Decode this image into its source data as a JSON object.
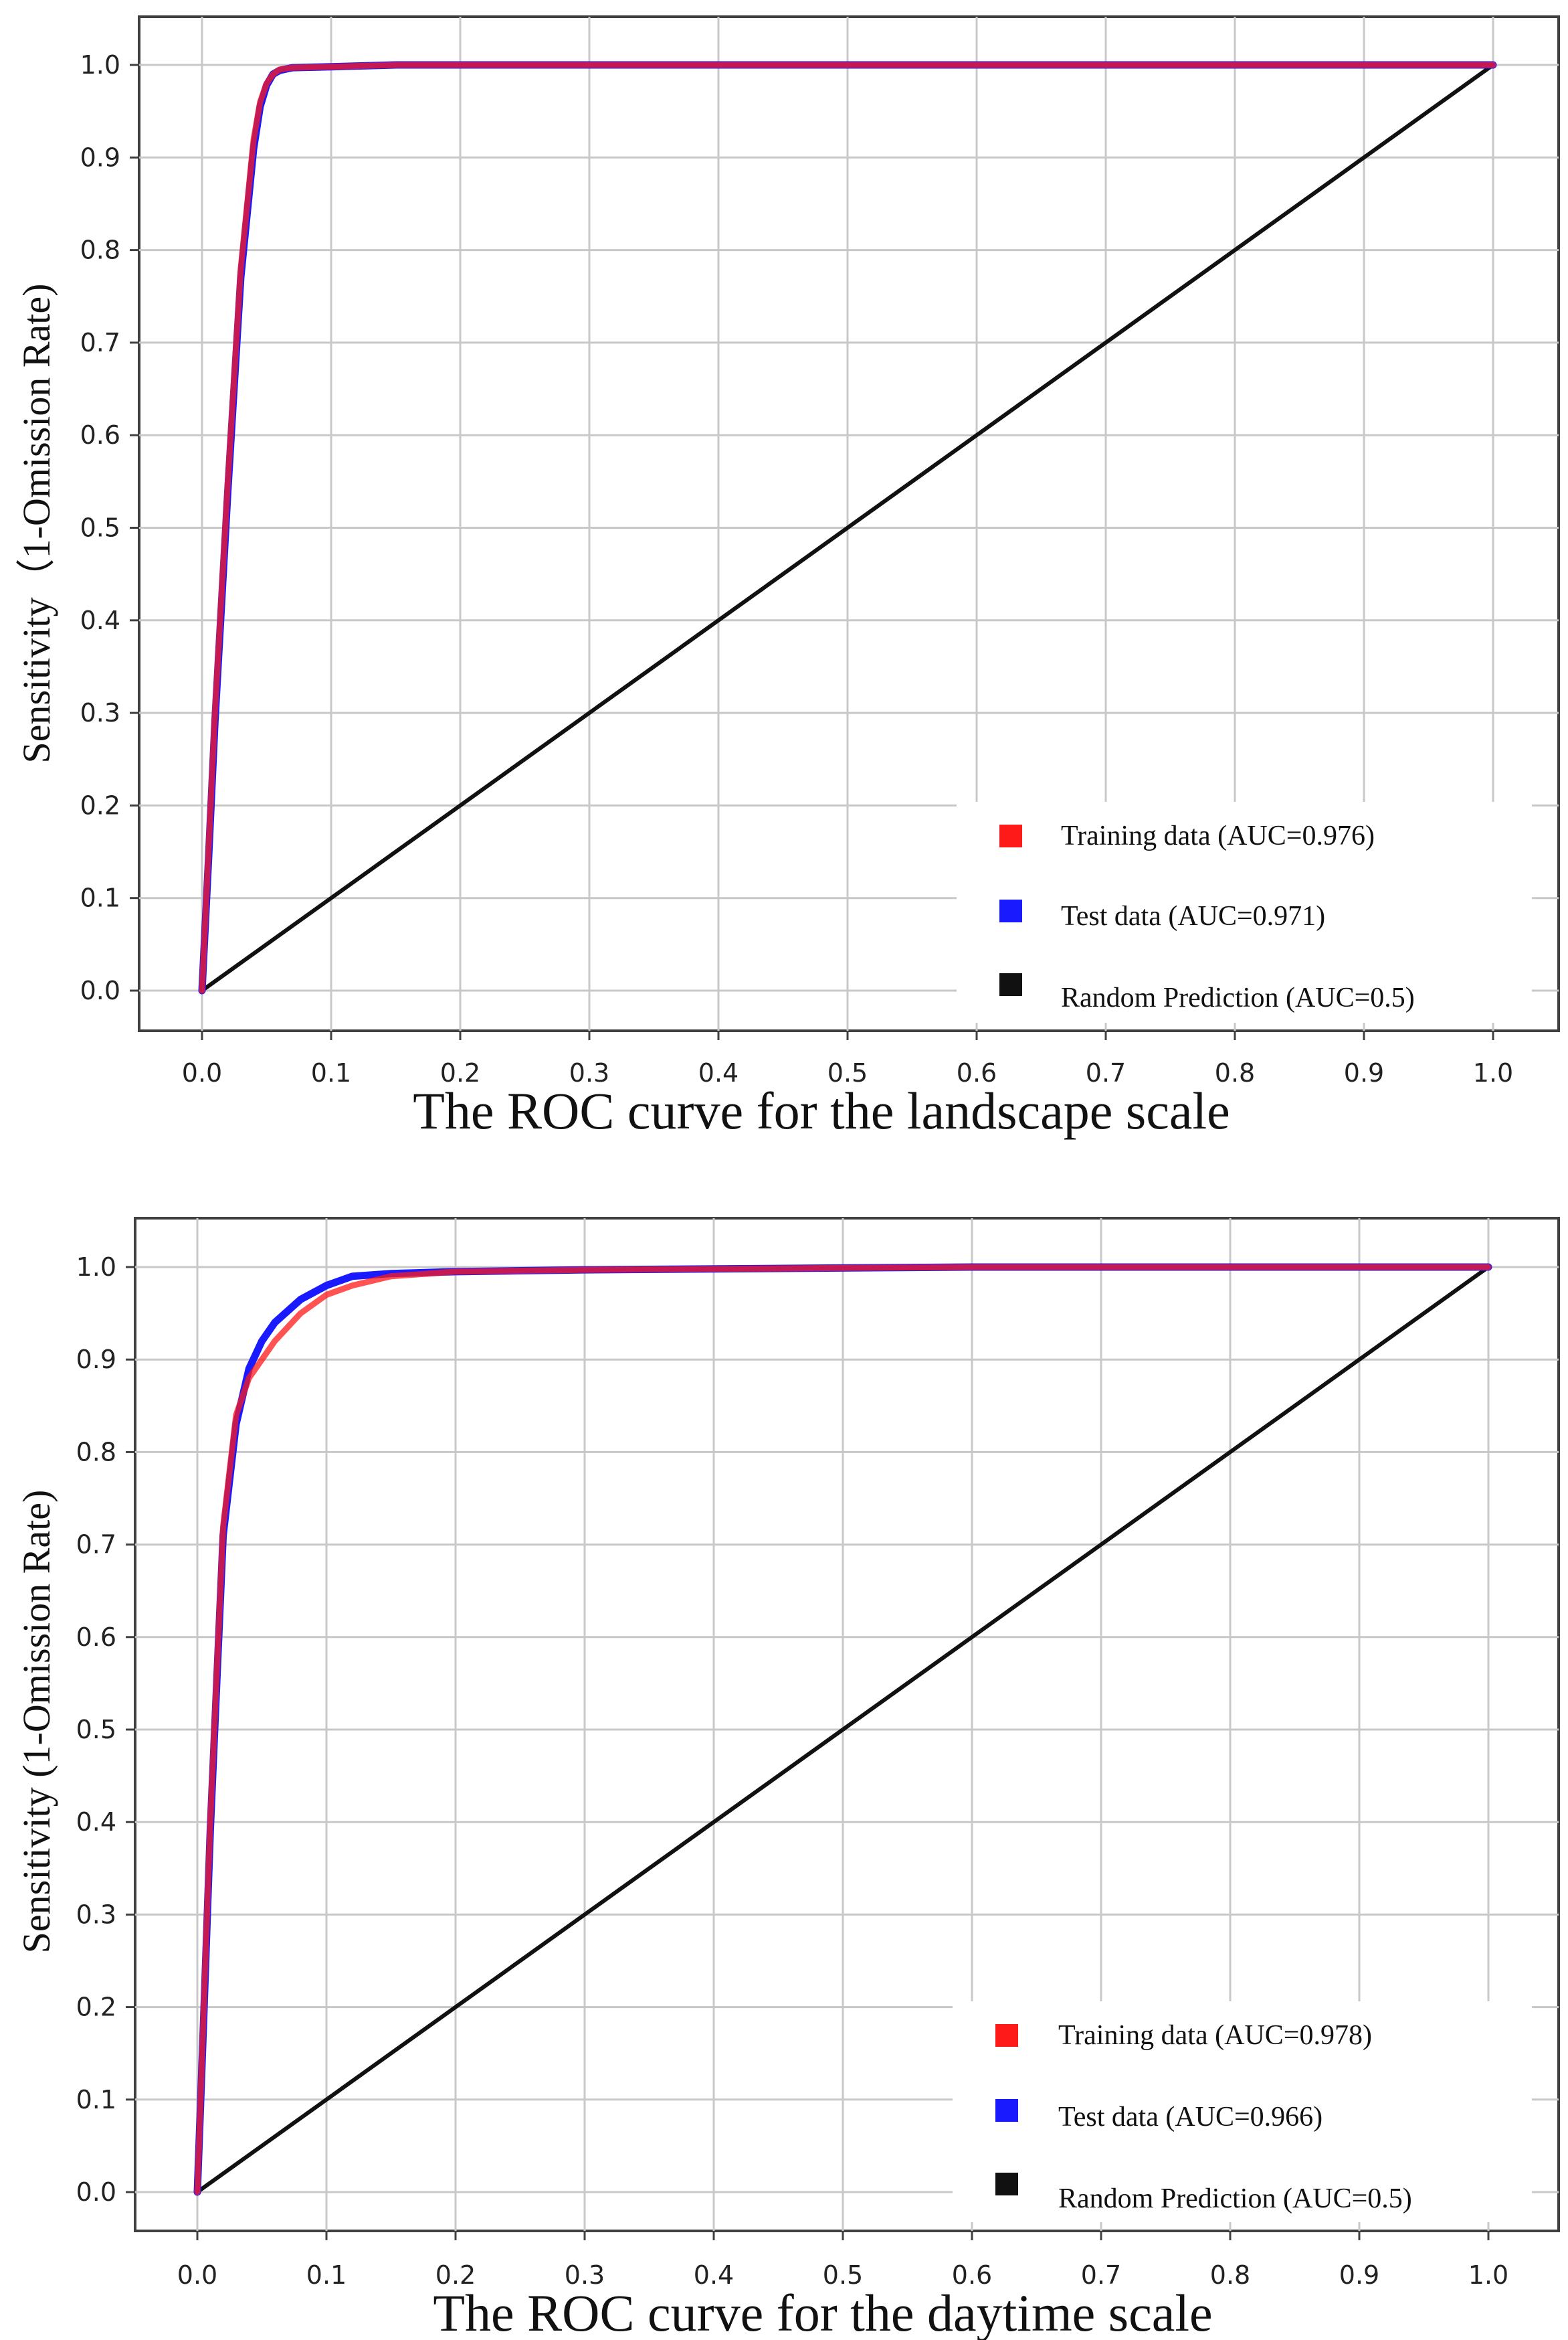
{
  "colors": {
    "training": "#ff1a1a",
    "test": "#1a1aff",
    "random": "#111111",
    "grid": "#c8c8c8",
    "frame": "#404040"
  },
  "chart_data": [
    {
      "type": "line",
      "title": "The ROC curve for the landscape scale",
      "ylabel": "Sensitivity（1-Omission Rate)",
      "xlabel": "",
      "xlim": [
        0,
        1
      ],
      "ylim": [
        0,
        1
      ],
      "xticks": [
        "0.0",
        "0.1",
        "0.2",
        "0.3",
        "0.4",
        "0.5",
        "0.6",
        "0.7",
        "0.8",
        "0.9",
        "1.0"
      ],
      "yticks": [
        "0.0",
        "0.1",
        "0.2",
        "0.3",
        "0.4",
        "0.5",
        "0.6",
        "0.7",
        "0.8",
        "0.9",
        "1.0"
      ],
      "grid": true,
      "legend_position": "bottom-right",
      "legend": [
        "Training data  (AUC=0.976)",
        "Test data (AUC=0.971)",
        "Random Prediction (AUC=0.5)"
      ],
      "series": [
        {
          "name": "Training data  (AUC=0.976)",
          "color": "#ff1a1a",
          "x": [
            0,
            0.005,
            0.01,
            0.02,
            0.03,
            0.04,
            0.045,
            0.05,
            0.055,
            0.06,
            0.07,
            0.1,
            0.15,
            1.0
          ],
          "y": [
            0,
            0.15,
            0.3,
            0.55,
            0.78,
            0.92,
            0.96,
            0.98,
            0.99,
            0.995,
            0.997,
            0.998,
            1.0,
            1.0
          ]
        },
        {
          "name": "Test data (AUC=0.971)",
          "color": "#1a1aff",
          "x": [
            0,
            0.005,
            0.01,
            0.02,
            0.03,
            0.04,
            0.045,
            0.05,
            0.055,
            0.06,
            0.07,
            0.1,
            0.15,
            1.0
          ],
          "y": [
            0,
            0.14,
            0.29,
            0.54,
            0.77,
            0.91,
            0.955,
            0.978,
            0.99,
            0.994,
            0.997,
            0.998,
            1.0,
            1.0
          ]
        },
        {
          "name": "Random Prediction (AUC=0.5)",
          "color": "#111111",
          "x": [
            0,
            1
          ],
          "y": [
            0,
            1
          ]
        }
      ]
    },
    {
      "type": "line",
      "title": "The ROC curve for the daytime scale",
      "ylabel": "Sensitivity (1-Omission Rate)",
      "xlabel": "",
      "xlim": [
        0,
        1
      ],
      "ylim": [
        0,
        1
      ],
      "xticks": [
        "0.0",
        "0.1",
        "0.2",
        "0.3",
        "0.4",
        "0.5",
        "0.6",
        "0.7",
        "0.8",
        "0.9",
        "1.0"
      ],
      "yticks": [
        "0.0",
        "0.1",
        "0.2",
        "0.3",
        "0.4",
        "0.5",
        "0.6",
        "0.7",
        "0.8",
        "0.9",
        "1.0"
      ],
      "grid": true,
      "legend_position": "bottom-right",
      "legend": [
        "Training data  (AUC=0.978)",
        "Test data  (AUC=0.966)",
        "Random Prediction  (AUC=0.5)"
      ],
      "series": [
        {
          "name": "Training data  (AUC=0.978)",
          "color": "#ff1a1a",
          "x": [
            0,
            0.005,
            0.01,
            0.02,
            0.03,
            0.04,
            0.05,
            0.06,
            0.08,
            0.1,
            0.12,
            0.15,
            0.2,
            0.3,
            0.6,
            1.0
          ],
          "y": [
            0,
            0.2,
            0.4,
            0.72,
            0.84,
            0.88,
            0.9,
            0.92,
            0.95,
            0.97,
            0.98,
            0.99,
            0.995,
            0.997,
            1.0,
            1.0
          ]
        },
        {
          "name": "Test data  (AUC=0.966)",
          "color": "#1a1aff",
          "x": [
            0,
            0.005,
            0.01,
            0.02,
            0.03,
            0.04,
            0.05,
            0.06,
            0.08,
            0.1,
            0.12,
            0.15,
            0.2,
            0.3,
            0.6,
            1.0
          ],
          "y": [
            0,
            0.19,
            0.39,
            0.71,
            0.83,
            0.89,
            0.92,
            0.94,
            0.965,
            0.98,
            0.99,
            0.993,
            0.995,
            0.997,
            1.0,
            1.0
          ]
        },
        {
          "name": "Random Prediction  (AUC=0.5)",
          "color": "#111111",
          "x": [
            0,
            1
          ],
          "y": [
            0,
            1
          ]
        }
      ]
    }
  ]
}
